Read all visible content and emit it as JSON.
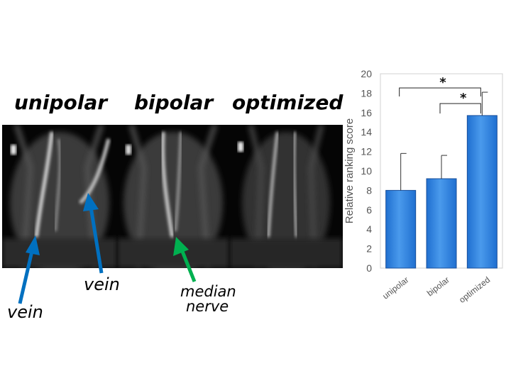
{
  "panels": [
    {
      "title": "unipolar"
    },
    {
      "title": "bipolar"
    },
    {
      "title": "optimized"
    }
  ],
  "annotations": {
    "vein_lower": "vein",
    "vein_upper": "vein",
    "median_line1": "median",
    "median_line2": "nerve"
  },
  "colors": {
    "vein_arrow": "#0070c0",
    "nerve_arrow": "#00b050",
    "bar_fill": "#1f6fd0",
    "bar_light": "#4a9aec",
    "axis_text": "#555555"
  },
  "chart_data": {
    "type": "bar",
    "categories": [
      "unipolar",
      "bipolar",
      "optimized"
    ],
    "values": [
      8.0,
      9.2,
      15.7
    ],
    "error_upper": [
      11.8,
      11.6,
      18.1
    ],
    "ylabel": "Relative ranking score",
    "ylim": [
      0,
      20
    ],
    "yticks": [
      "0",
      "2",
      "4",
      "6",
      "8",
      "10",
      "12",
      "14",
      "16",
      "18",
      "20"
    ],
    "significance": [
      {
        "from": "unipolar",
        "to": "optimized",
        "label": "*"
      },
      {
        "from": "bipolar",
        "to": "optimized",
        "label": "*"
      }
    ]
  }
}
